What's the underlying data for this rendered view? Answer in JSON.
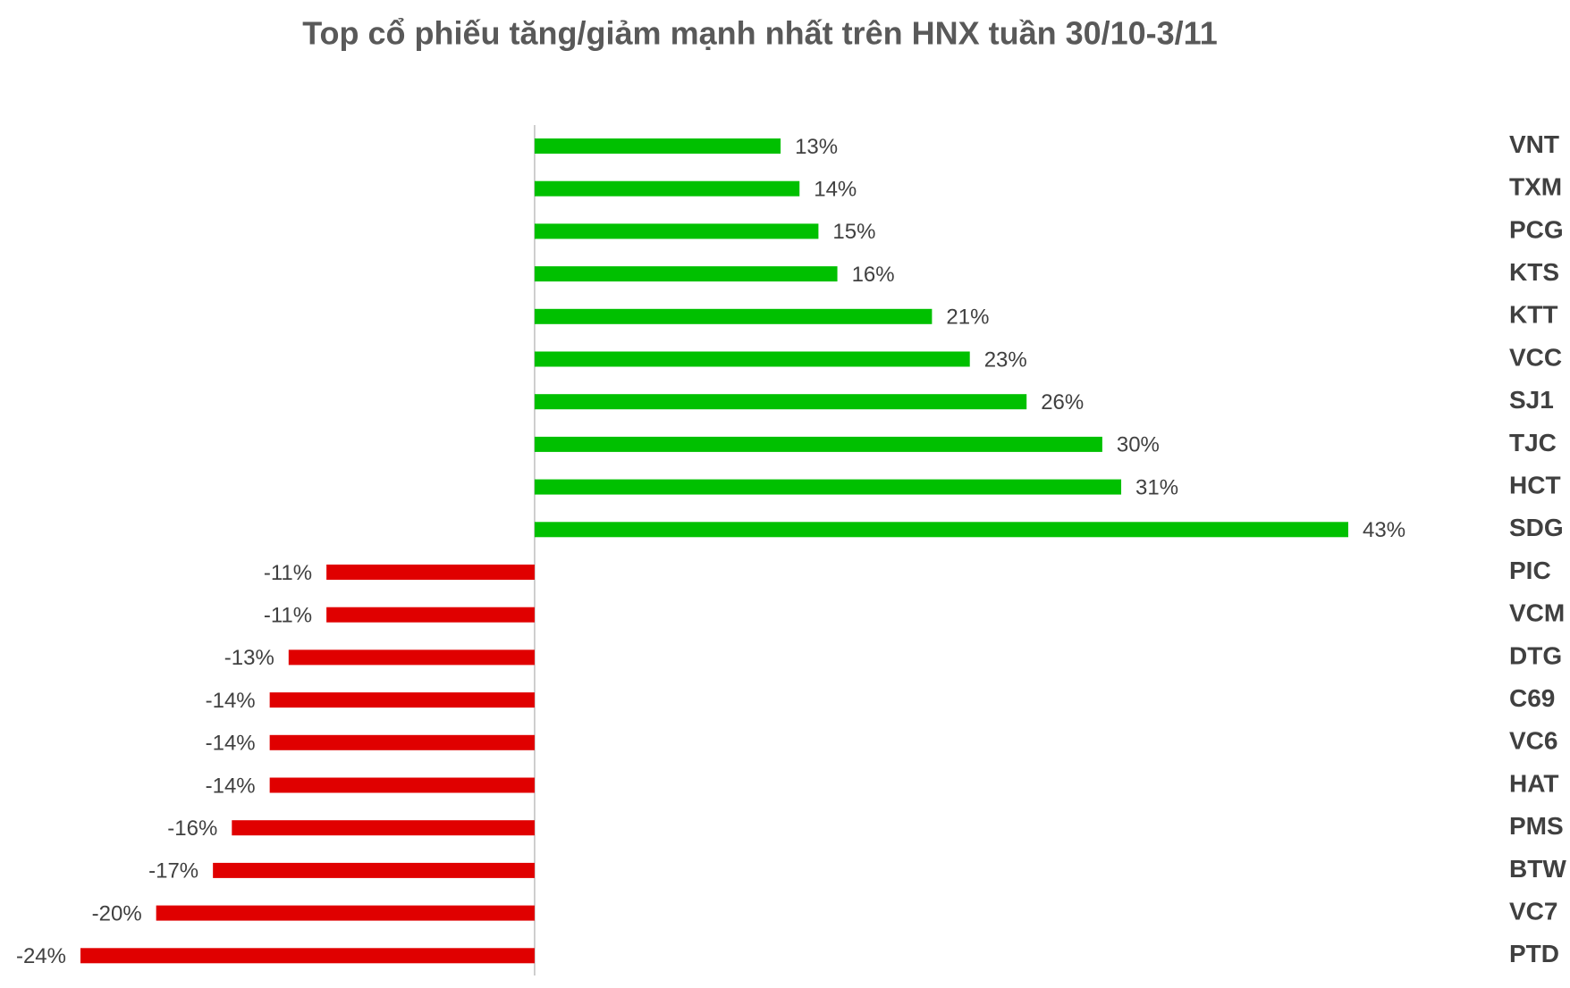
{
  "chart_data": {
    "type": "bar",
    "orientation": "horizontal",
    "title": "Top cổ phiếu tăng/giảm mạnh nhất trên HNX tuần 30/10-3/11",
    "categories": [
      "VNT",
      "TXM",
      "PCG",
      "KTS",
      "KTT",
      "VCC",
      "SJ1",
      "TJC",
      "HCT",
      "SDG",
      "PIC",
      "VCM",
      "DTG",
      "C69",
      "VC6",
      "HAT",
      "PMS",
      "BTW",
      "VC7",
      "PTD"
    ],
    "values": [
      13,
      14,
      15,
      16,
      21,
      23,
      26,
      30,
      31,
      43,
      -11,
      -11,
      -13,
      -14,
      -14,
      -14,
      -16,
      -17,
      -20,
      -24
    ],
    "value_labels": [
      "13%",
      "14%",
      "15%",
      "16%",
      "21%",
      "23%",
      "26%",
      "30%",
      "31%",
      "43%",
      "-11%",
      "-11%",
      "-13%",
      "-14%",
      "-14%",
      "-14%",
      "-16%",
      "-17%",
      "-20%",
      "-24%"
    ],
    "positive_color": "#00c000",
    "negative_color": "#e00000",
    "xlim": [
      -24,
      43
    ]
  }
}
